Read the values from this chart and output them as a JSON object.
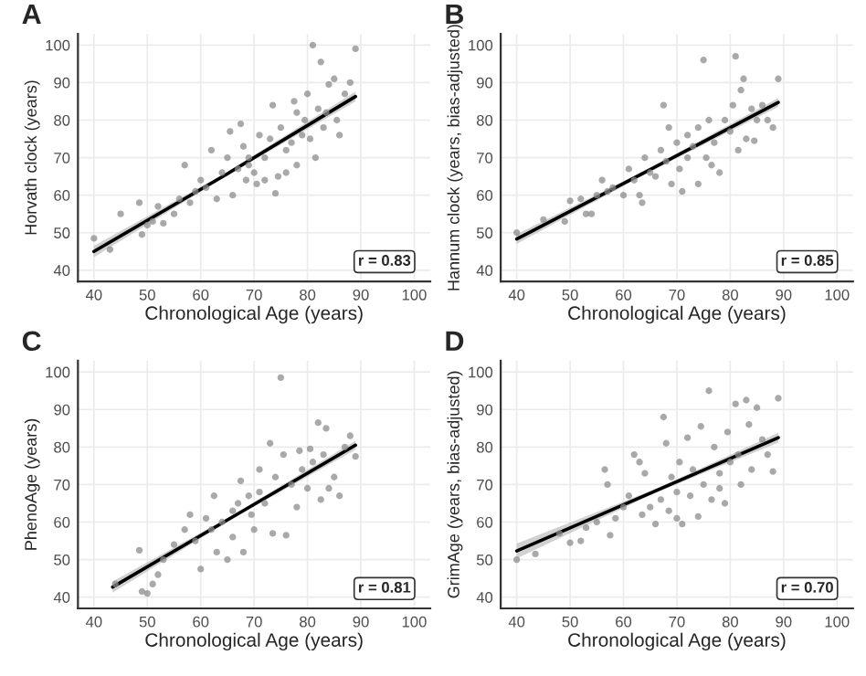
{
  "chart_data": [
    {
      "type": "scatter",
      "title": "A",
      "xlabel": "Chronological Age (years)",
      "ylabel": "Horvath clock (years)",
      "annotations": [
        "r = 0.83"
      ],
      "xlim": [
        37,
        103
      ],
      "ylim": [
        37,
        103
      ],
      "xticks": [
        40,
        50,
        60,
        70,
        80,
        90,
        100
      ],
      "yticks": [
        40,
        50,
        60,
        70,
        80,
        90,
        100
      ],
      "grid": true,
      "legend": false,
      "series": [
        {
          "type": "scatter",
          "marker": "circle",
          "color": "#8c8c8c",
          "x": [
            40,
            43,
            45,
            48.5,
            49,
            50,
            51,
            52,
            53,
            55,
            56,
            57,
            58,
            59,
            60,
            61,
            62,
            63,
            64,
            65,
            65.5,
            66,
            67,
            67.5,
            68,
            68.5,
            69,
            70,
            70.5,
            71,
            72,
            73,
            73.5,
            74,
            74.5,
            75,
            76,
            77,
            77.5,
            78,
            79,
            79.5,
            80,
            80.5,
            81,
            81.5,
            82,
            82.5,
            83,
            83.5,
            84,
            85,
            85.5,
            86,
            87,
            88,
            89,
            78,
            76,
            72,
            69
          ],
          "values": [
            48.5,
            45.5,
            55,
            58,
            49.5,
            52,
            53,
            57,
            52.5,
            55,
            59,
            68,
            58,
            61,
            64,
            62,
            72,
            59,
            66,
            70,
            77,
            60,
            67,
            79,
            73,
            64,
            70,
            66,
            63,
            76,
            70,
            75,
            84,
            60.5,
            65,
            78,
            72,
            74,
            85,
            68,
            76,
            80,
            87,
            75,
            100,
            70,
            83,
            95.5,
            78,
            82,
            89.5,
            91,
            80,
            76,
            87,
            90,
            99,
            82,
            66,
            64,
            68
          ]
        },
        {
          "type": "line",
          "color": "#000000",
          "x": [
            40,
            65,
            89
          ],
          "values": [
            45,
            65.7,
            86.3
          ],
          "lower": [
            43.5,
            65.2,
            85
          ],
          "upper": [
            46.5,
            66.2,
            87.6
          ]
        }
      ]
    },
    {
      "type": "scatter",
      "title": "B",
      "xlabel": "Chronological Age (years)",
      "ylabel": "Hannum clock (years, bias-adjusted)",
      "annotations": [
        "r = 0.85"
      ],
      "xlim": [
        37,
        103
      ],
      "ylim": [
        37,
        103
      ],
      "xticks": [
        40,
        50,
        60,
        70,
        80,
        90,
        100
      ],
      "yticks": [
        40,
        50,
        60,
        70,
        80,
        90,
        100
      ],
      "grid": true,
      "legend": false,
      "series": [
        {
          "type": "scatter",
          "marker": "circle",
          "color": "#8c8c8c",
          "x": [
            40,
            45,
            49,
            50,
            52,
            53,
            54,
            55,
            56,
            57,
            58,
            60,
            61,
            62,
            63,
            63.5,
            64,
            65,
            66,
            67,
            67.5,
            68,
            68.5,
            69,
            70,
            70.5,
            71,
            72,
            73,
            74,
            75,
            75.5,
            76,
            76.5,
            77,
            78,
            79,
            80,
            80.5,
            81,
            81.5,
            82,
            82.5,
            83,
            84,
            84.5,
            85,
            86,
            87,
            88,
            89,
            74,
            72
          ],
          "values": [
            50,
            53.5,
            53,
            58.5,
            59,
            55,
            55,
            60,
            64,
            61,
            62,
            60,
            67,
            64,
            60,
            58,
            70,
            66,
            65,
            72,
            84,
            69,
            78,
            63,
            74,
            67,
            61,
            76,
            73,
            63,
            96,
            70,
            80,
            68,
            74,
            66,
            80,
            77,
            84,
            97,
            72,
            88,
            91,
            75,
            83,
            74.5,
            80,
            84,
            80,
            78,
            91,
            78,
            70
          ]
        },
        {
          "type": "line",
          "color": "#000000",
          "x": [
            40,
            65,
            89
          ],
          "values": [
            48.3,
            66.8,
            84.7
          ],
          "lower": [
            47,
            66.3,
            83.5
          ],
          "upper": [
            49.6,
            67.3,
            85.9
          ]
        }
      ]
    },
    {
      "type": "scatter",
      "title": "C",
      "xlabel": "Chronological Age (years)",
      "ylabel": "PhenoAge (years)",
      "annotations": [
        "r = 0.81"
      ],
      "xlim": [
        37,
        103
      ],
      "ylim": [
        37,
        103
      ],
      "xticks": [
        40,
        50,
        60,
        70,
        80,
        90,
        100
      ],
      "yticks": [
        40,
        50,
        60,
        70,
        80,
        90,
        100
      ],
      "grid": true,
      "legend": false,
      "series": [
        {
          "type": "scatter",
          "marker": "circle",
          "color": "#8c8c8c",
          "x": [
            44,
            48.5,
            49,
            50,
            51,
            52,
            53,
            55,
            57,
            58,
            59,
            60,
            61,
            62,
            62.5,
            63,
            64,
            65,
            66,
            67,
            67.5,
            68,
            69,
            69.5,
            70,
            71,
            72,
            73,
            73.5,
            74,
            75,
            75.5,
            76,
            77,
            78,
            78.5,
            79,
            80,
            80.5,
            81,
            82,
            82.5,
            83,
            83.5,
            84,
            85,
            86,
            87,
            88,
            89,
            71,
            66
          ],
          "values": [
            43.5,
            52.5,
            41.5,
            41,
            43.5,
            46,
            50,
            54,
            58,
            62,
            55,
            47.5,
            61,
            58,
            67,
            52,
            60,
            50,
            56,
            65,
            71,
            52,
            67,
            62,
            58,
            68,
            65,
            81,
            57,
            72,
            98.5,
            78,
            56.5,
            70,
            64,
            79,
            74,
            69,
            79.5,
            76,
            86.5,
            66,
            78,
            85,
            69,
            72,
            67,
            80,
            83,
            77.5,
            74,
            63
          ]
        },
        {
          "type": "line",
          "color": "#000000",
          "x": [
            43.5,
            66,
            89
          ],
          "values": [
            42.7,
            61.4,
            80.5
          ],
          "lower": [
            41.2,
            60.9,
            79.3
          ],
          "upper": [
            44.2,
            61.9,
            81.7
          ]
        }
      ]
    },
    {
      "type": "scatter",
      "title": "D",
      "xlabel": "Chronological Age (years)",
      "ylabel": "GrimAge (years, bias-adjusted)",
      "annotations": [
        "r = 0.70"
      ],
      "xlim": [
        37,
        103
      ],
      "ylim": [
        37,
        103
      ],
      "xticks": [
        40,
        50,
        60,
        70,
        80,
        90,
        100
      ],
      "yticks": [
        40,
        50,
        60,
        70,
        80,
        90,
        100
      ],
      "grid": true,
      "legend": false,
      "series": [
        {
          "type": "scatter",
          "marker": "circle",
          "color": "#8c8c8c",
          "x": [
            40,
            43.5,
            48,
            50,
            52,
            53,
            55,
            56.5,
            57,
            57.5,
            58.5,
            60,
            61,
            62,
            63,
            63.5,
            64,
            65,
            66,
            67,
            67.5,
            68,
            68.5,
            69,
            70,
            70.5,
            71,
            72,
            72.5,
            73,
            74,
            74.5,
            75,
            76,
            76.5,
            77,
            78,
            79,
            79.5,
            80,
            81,
            81.5,
            82,
            83,
            83.5,
            84,
            85,
            86,
            87,
            88,
            89,
            78,
            70
          ],
          "values": [
            50,
            51.5,
            57,
            54.5,
            55,
            58.5,
            60,
            74,
            70,
            56.5,
            61,
            64,
            67,
            78,
            76,
            62,
            73,
            64,
            59.5,
            66,
            88,
            81,
            63,
            72,
            61,
            76,
            59.5,
            82.5,
            67,
            74,
            61.5,
            85.5,
            70,
            95,
            66,
            80,
            73,
            65,
            84,
            76,
            91.5,
            78,
            70,
            92.5,
            86,
            74,
            90.5,
            82,
            78,
            73.5,
            93,
            69,
            68
          ]
        },
        {
          "type": "line",
          "color": "#000000",
          "x": [
            40,
            66,
            89
          ],
          "values": [
            52.3,
            68.3,
            82.5
          ],
          "lower": [
            50.3,
            67.8,
            81.2
          ],
          "upper": [
            54.3,
            68.8,
            83.8
          ]
        }
      ]
    }
  ]
}
